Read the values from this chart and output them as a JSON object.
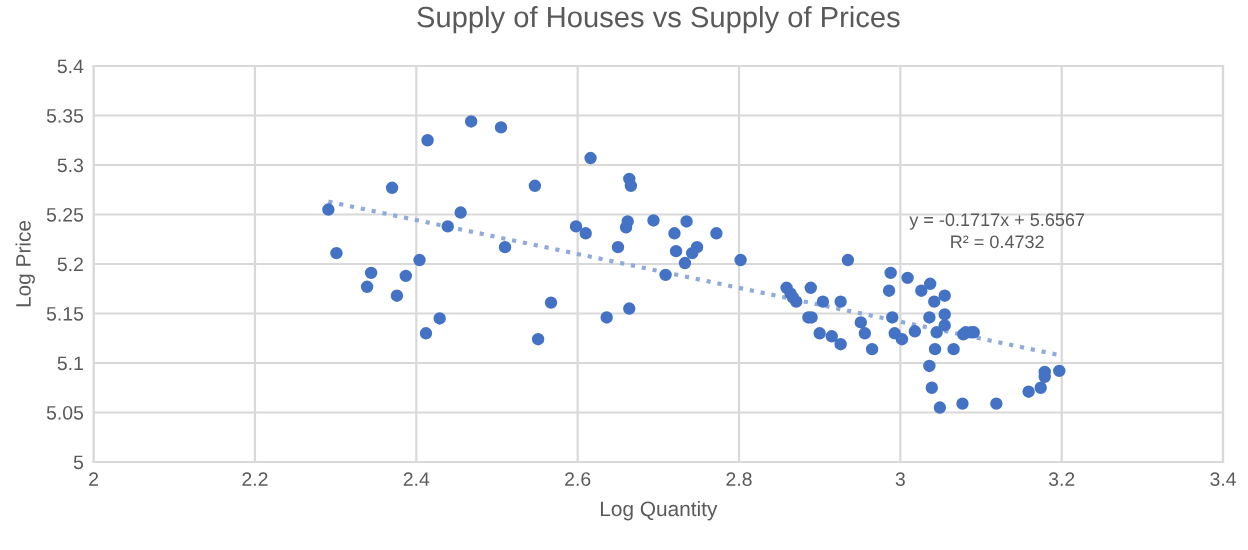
{
  "chart_data": {
    "type": "scatter",
    "title": "Supply of Houses vs Supply of Prices",
    "xlabel": "Log Quantity",
    "ylabel": "Log Price",
    "xlim": [
      2,
      3.4
    ],
    "xticks": [
      2,
      2.2,
      2.4,
      2.6,
      2.8,
      3,
      3.2,
      3.4
    ],
    "ylim": [
      5,
      5.4
    ],
    "yticks": [
      5,
      5.05,
      5.1,
      5.15,
      5.2,
      5.25,
      5.3,
      5.35,
      5.4
    ],
    "grid": true,
    "marker": "circle",
    "series": [
      {
        "color": "#4472c4",
        "x": [
          2.291,
          2.301,
          2.344,
          2.339,
          2.37,
          2.376,
          2.387,
          2.404,
          2.414,
          2.412,
          2.429,
          2.439,
          2.455,
          2.468,
          2.505,
          2.51,
          2.547,
          2.551,
          2.567,
          2.598,
          2.61,
          2.616,
          2.636,
          2.65,
          2.66,
          2.662,
          2.664,
          2.666,
          2.664,
          2.694,
          2.709,
          2.72,
          2.722,
          2.735,
          2.733,
          2.742,
          2.748,
          2.772,
          2.802,
          2.859,
          2.864,
          2.867,
          2.871,
          2.889,
          2.886,
          2.89,
          2.9,
          2.904,
          2.915,
          2.926,
          2.926,
          2.935,
          2.951,
          2.956,
          2.965,
          2.988,
          2.986,
          2.99,
          2.993,
          3.002,
          3.009,
          3.018,
          3.026,
          3.037,
          3.036,
          3.042,
          3.045,
          3.043,
          3.036,
          3.039,
          3.049,
          3.055,
          3.055,
          3.055,
          3.066,
          3.077,
          3.078,
          3.081,
          3.088,
          3.091,
          3.119,
          3.159,
          3.174,
          3.179,
          3.179,
          3.197
        ],
        "values": [
          5.255,
          5.211,
          5.191,
          5.177,
          5.277,
          5.168,
          5.188,
          5.204,
          5.325,
          5.13,
          5.145,
          5.238,
          5.252,
          5.344,
          5.338,
          5.217,
          5.279,
          5.124,
          5.161,
          5.238,
          5.231,
          5.307,
          5.146,
          5.217,
          5.237,
          5.243,
          5.286,
          5.279,
          5.155,
          5.244,
          5.189,
          5.231,
          5.213,
          5.243,
          5.201,
          5.211,
          5.217,
          5.231,
          5.204,
          5.176,
          5.17,
          5.166,
          5.162,
          5.176,
          5.146,
          5.146,
          5.13,
          5.162,
          5.127,
          5.162,
          5.119,
          5.204,
          5.141,
          5.13,
          5.114,
          5.191,
          5.173,
          5.146,
          5.13,
          5.124,
          5.186,
          5.132,
          5.173,
          5.18,
          5.146,
          5.162,
          5.131,
          5.114,
          5.097,
          5.075,
          5.055,
          5.168,
          5.149,
          5.138,
          5.114,
          5.059,
          5.129,
          5.131,
          5.131,
          5.131,
          5.059,
          5.071,
          5.075,
          5.091,
          5.086,
          5.092
        ]
      },
      {
        "type": "line",
        "color": "#8faadc",
        "line_style": "dotted",
        "marker": "none",
        "x": [
          2.291,
          3.197
        ],
        "values": [
          5.263,
          5.108
        ]
      }
    ],
    "annotations": [
      "y = -0.1717x + 5.6567\nR² = 0.4732"
    ]
  }
}
